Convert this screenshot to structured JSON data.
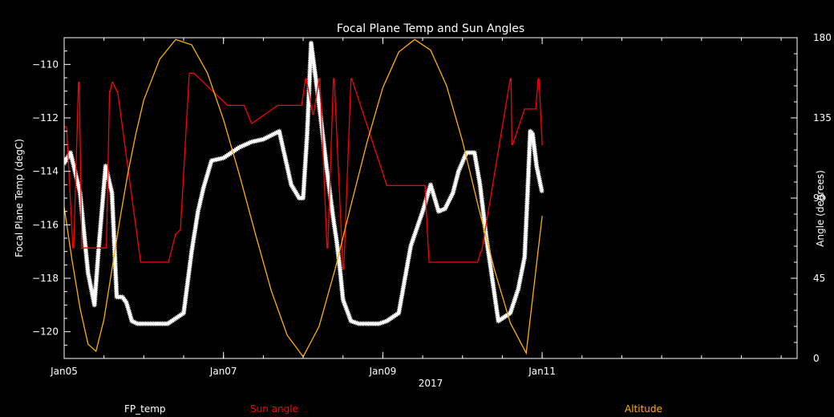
{
  "chart_data": {
    "type": "line",
    "title": "Focal Plane Temp and Sun Angles",
    "xlabel": "2017",
    "ylabel_left": "Focal Plane Temp (degC)",
    "ylabel_right": "Angle (degrees)",
    "x_range_days": [
      5,
      14.2
    ],
    "x_ticks": [
      {
        "day": 5,
        "label": "Jan05"
      },
      {
        "day": 7,
        "label": "Jan07"
      },
      {
        "day": 9,
        "label": "Jan09"
      },
      {
        "day": 11,
        "label": "Jan11"
      }
    ],
    "ylim_left": [
      -121,
      -109
    ],
    "yticks_left": [
      -110,
      -112,
      -114,
      -116,
      -118,
      -120
    ],
    "ylim_right": [
      0,
      180
    ],
    "yticks_right": [
      0,
      45,
      90,
      135,
      180
    ],
    "legend": [
      "FP_temp",
      "Sun angle",
      "Altitude"
    ],
    "colors": {
      "fp_temp": "#ffffff",
      "sun_angle": "#ff0000",
      "altitude": "#ffb000",
      "axes": "#ffffff"
    },
    "series": [
      {
        "name": "FP_temp",
        "axis": "left",
        "style": "asterisk-markers",
        "x": [
          5.0,
          5.08,
          5.2,
          5.3,
          5.38,
          5.43,
          5.52,
          5.6,
          5.66,
          5.73,
          5.78,
          5.85,
          5.92,
          6.0,
          6.1,
          6.3,
          6.5,
          6.6,
          6.68,
          6.75,
          6.85,
          7.0,
          7.1,
          7.2,
          7.35,
          7.5,
          7.7,
          7.85,
          7.95,
          8.0,
          8.05,
          8.1,
          8.2,
          8.3,
          8.38,
          8.42,
          8.46,
          8.5,
          8.6,
          8.7,
          8.8,
          8.95,
          9.05,
          9.2,
          9.35,
          9.5,
          9.6,
          9.7,
          9.78,
          9.88,
          9.95,
          10.05,
          10.15,
          10.22,
          10.3,
          10.45,
          10.6,
          10.7,
          10.78,
          10.82,
          10.85,
          10.88,
          10.93,
          11.0
        ],
        "values": [
          -113.7,
          -113.3,
          -114.8,
          -117.8,
          -119.0,
          -117.0,
          -113.8,
          -114.8,
          -118.7,
          -118.7,
          -118.9,
          -119.6,
          -119.7,
          -119.7,
          -119.7,
          -119.7,
          -119.3,
          -117.0,
          -115.5,
          -114.6,
          -113.6,
          -113.5,
          -113.3,
          -113.1,
          -112.9,
          -112.8,
          -112.5,
          -114.5,
          -115.0,
          -115.0,
          -112.6,
          -109.2,
          -111.5,
          -114.0,
          -115.8,
          -116.6,
          -117.6,
          -118.8,
          -119.6,
          -119.7,
          -119.7,
          -119.7,
          -119.6,
          -119.3,
          -116.8,
          -115.5,
          -114.5,
          -115.5,
          -115.4,
          -114.8,
          -114.0,
          -113.3,
          -113.3,
          -114.5,
          -116.5,
          -119.6,
          -119.3,
          -118.4,
          -117.2,
          -114.6,
          -112.5,
          -112.6,
          -113.8,
          -114.8
        ]
      },
      {
        "name": "Sun angle",
        "axis": "right",
        "style": "step-line",
        "x": [
          5.0,
          5.03,
          5.11,
          5.12,
          5.18,
          5.19,
          5.22,
          5.23,
          5.32,
          5.35,
          5.4,
          5.41,
          5.45,
          5.46,
          5.48,
          5.49,
          5.52,
          5.53,
          5.57,
          5.58,
          5.6,
          5.61,
          5.66,
          5.67,
          5.96,
          5.97,
          6.3,
          6.31,
          6.4,
          6.41,
          6.45,
          6.46,
          6.57,
          6.58,
          6.62,
          6.63,
          7.05,
          7.06,
          7.25,
          7.26,
          7.35,
          7.36,
          7.68,
          7.69,
          7.97,
          7.98,
          8.03,
          8.04,
          8.12,
          8.13,
          8.2,
          8.21,
          8.3,
          8.31,
          8.38,
          8.39,
          8.5,
          8.51,
          8.6,
          8.61,
          9.05,
          9.06,
          9.11,
          9.12,
          9.48,
          9.49,
          9.52,
          9.53,
          9.58,
          9.59,
          9.78,
          9.79,
          9.87,
          9.88,
          10.18,
          10.19,
          10.23,
          10.24,
          10.6,
          10.61,
          10.62,
          10.63,
          10.78,
          10.79,
          10.83,
          10.84,
          10.88,
          10.89,
          10.91,
          10.92,
          10.95,
          10.96,
          11.0,
          11.01
        ],
        "values": [
          130,
          130,
          62,
          62,
          155,
          155,
          62,
          62,
          62,
          62,
          62,
          62,
          62,
          62,
          62,
          62,
          62,
          62,
          150,
          150,
          155,
          155,
          150,
          150,
          54,
          54,
          54,
          54,
          70,
          70,
          72,
          72,
          160,
          160,
          160,
          160,
          142,
          142,
          142,
          142,
          132,
          132,
          142,
          142,
          142,
          142,
          157,
          157,
          137,
          137,
          157,
          157,
          62,
          62,
          157,
          157,
          50,
          50,
          157,
          157,
          97,
          97,
          97,
          97,
          97,
          97,
          97,
          97,
          54,
          54,
          54,
          54,
          54,
          54,
          54,
          54,
          60,
          60,
          157,
          157,
          120,
          120,
          140,
          140,
          140,
          140,
          140,
          140,
          140,
          140,
          157,
          157,
          120,
          120
        ]
      },
      {
        "name": "Altitude",
        "axis": "right",
        "style": "line",
        "x": [
          5.0,
          5.1,
          5.2,
          5.3,
          5.4,
          5.5,
          5.6,
          5.7,
          5.8,
          5.9,
          6.0,
          6.2,
          6.4,
          6.6,
          6.8,
          7.0,
          7.2,
          7.4,
          7.6,
          7.8,
          8.0,
          8.2,
          8.4,
          8.6,
          8.8,
          9.0,
          9.2,
          9.4,
          9.6,
          9.8,
          10.0,
          10.2,
          10.4,
          10.6,
          10.8,
          11.0
        ],
        "values": [
          85,
          55,
          28,
          8,
          4,
          22,
          50,
          78,
          104,
          126,
          145,
          168,
          179,
          176,
          160,
          134,
          103,
          70,
          38,
          13,
          1,
          18,
          50,
          86,
          121,
          152,
          172,
          179,
          173,
          153,
          122,
          85,
          50,
          20,
          3,
          80
        ]
      }
    ]
  }
}
